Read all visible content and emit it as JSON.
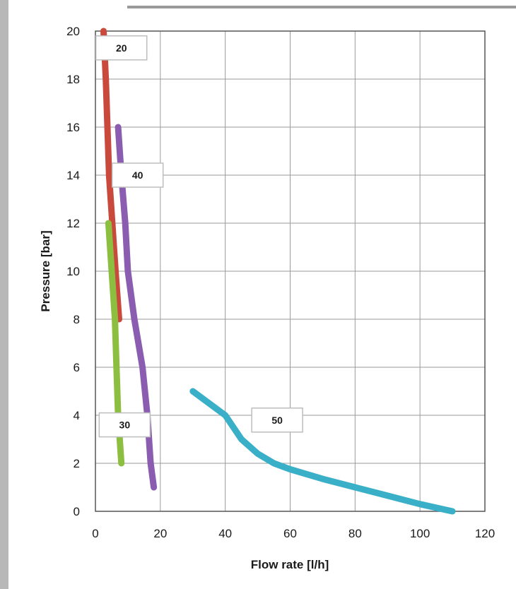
{
  "chart_data": {
    "type": "line",
    "xlabel": "Flow rate [l/h]",
    "ylabel": "Pressure [bar]",
    "xlim": [
      0,
      120
    ],
    "ylim": [
      0,
      20
    ],
    "x_ticks": [
      "0",
      "20",
      "40",
      "60",
      "80",
      "100",
      "120"
    ],
    "y_ticks": [
      "0",
      "2",
      "4",
      "6",
      "8",
      "10",
      "12",
      "14",
      "16",
      "18",
      "20"
    ],
    "grid": true,
    "legend": "none",
    "series": [
      {
        "name": "20",
        "color": "#c94a3c",
        "points": [
          [
            2.5,
            20
          ],
          [
            3.2,
            18
          ],
          [
            4.2,
            14
          ],
          [
            5.2,
            12
          ],
          [
            6.2,
            10
          ],
          [
            7.3,
            8
          ]
        ]
      },
      {
        "name": "40",
        "color": "#8a5db0",
        "points": [
          [
            7,
            16
          ],
          [
            8,
            14
          ],
          [
            9.2,
            12
          ],
          [
            10,
            10
          ],
          [
            12,
            8
          ],
          [
            14.5,
            6
          ],
          [
            16,
            4
          ],
          [
            17,
            2
          ],
          [
            18,
            1
          ]
        ]
      },
      {
        "name": "30",
        "color": "#8cbf3f",
        "points": [
          [
            4,
            12
          ],
          [
            5,
            10
          ],
          [
            6,
            8
          ],
          [
            6.5,
            6
          ],
          [
            7,
            4
          ],
          [
            8,
            2
          ]
        ]
      },
      {
        "name": "50",
        "color": "#3ab0c8",
        "points": [
          [
            30,
            5
          ],
          [
            35,
            4.5
          ],
          [
            40,
            4
          ],
          [
            45,
            3
          ],
          [
            50,
            2.4
          ],
          [
            55,
            2
          ],
          [
            60,
            1.75
          ],
          [
            70,
            1.35
          ],
          [
            80,
            1
          ],
          [
            90,
            0.65
          ],
          [
            100,
            0.3
          ],
          [
            110,
            0
          ]
        ]
      }
    ],
    "annotations": [
      {
        "text": "20",
        "series": "20",
        "x": 8,
        "y": 19.3
      },
      {
        "text": "40",
        "series": "40",
        "x": 13,
        "y": 14
      },
      {
        "text": "30",
        "series": "30",
        "x": 9,
        "y": 3.6
      },
      {
        "text": "50",
        "series": "50",
        "x": 56,
        "y": 3.8
      }
    ]
  }
}
